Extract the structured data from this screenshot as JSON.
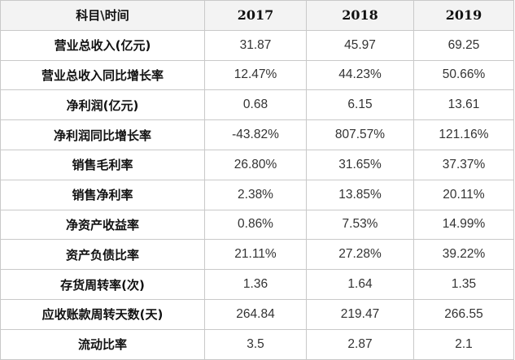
{
  "table": {
    "header": [
      "科目\\时间",
      "2017",
      "2018",
      "2019"
    ],
    "rows": [
      {
        "label": "营业总收入(亿元)",
        "values": [
          "31.87",
          "45.97",
          "69.25"
        ]
      },
      {
        "label": "营业总收入同比增长率",
        "values": [
          "12.47%",
          "44.23%",
          "50.66%"
        ]
      },
      {
        "label": "净利润(亿元)",
        "values": [
          "0.68",
          "6.15",
          "13.61"
        ]
      },
      {
        "label": "净利润同比增长率",
        "values": [
          "-43.82%",
          "807.57%",
          "121.16%"
        ]
      },
      {
        "label": "销售毛利率",
        "values": [
          "26.80%",
          "31.65%",
          "37.37%"
        ]
      },
      {
        "label": "销售净利率",
        "values": [
          "2.38%",
          "13.85%",
          "20.11%"
        ]
      },
      {
        "label": "净资产收益率",
        "values": [
          "0.86%",
          "7.53%",
          "14.99%"
        ]
      },
      {
        "label": "资产负债比率",
        "values": [
          "21.11%",
          "27.28%",
          "39.22%"
        ]
      },
      {
        "label": "存货周转率(次)",
        "values": [
          "1.36",
          "1.64",
          "1.35"
        ]
      },
      {
        "label": "应收账款周转天数(天)",
        "values": [
          "264.84",
          "219.47",
          "266.55"
        ]
      },
      {
        "label": "流动比率",
        "values": [
          "3.5",
          "2.87",
          "2.1"
        ]
      }
    ]
  }
}
